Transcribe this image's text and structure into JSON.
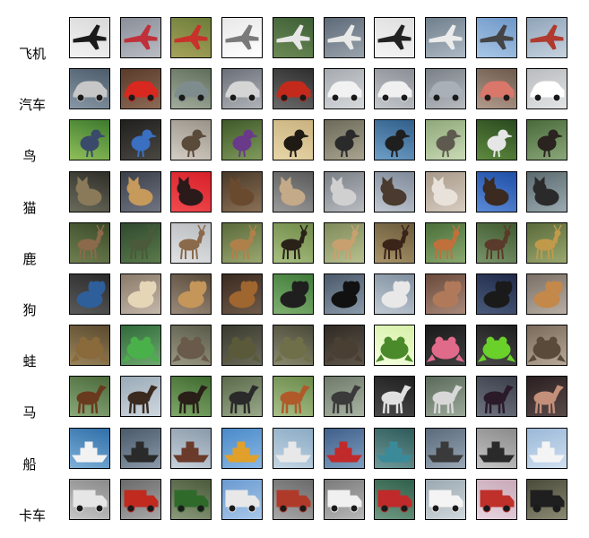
{
  "figure": {
    "rows": [
      {
        "label": "飞机",
        "subject": "airplane",
        "tiles": [
          {
            "bg": [
              "#d9d9d9",
              "#f2f2f2"
            ],
            "fg": "#1a1a1a",
            "icon": "airplane-icon"
          },
          {
            "bg": [
              "#8a8f99",
              "#b9bcc4"
            ],
            "fg": "#c0303a",
            "icon": "airplane-icon"
          },
          {
            "bg": [
              "#6b7d3a",
              "#a7a25a"
            ],
            "fg": "#c8322a",
            "icon": "airplane-icon"
          },
          {
            "bg": [
              "#e8e8e8",
              "#ffffff"
            ],
            "fg": "#7a7a7a",
            "icon": "airplane-icon"
          },
          {
            "bg": [
              "#3d5f36",
              "#6c8a55"
            ],
            "fg": "#e6e6e6",
            "icon": "airplane-icon"
          },
          {
            "bg": [
              "#5d6a78",
              "#9aa3ad"
            ],
            "fg": "#e9e9e9",
            "icon": "airplane-icon"
          },
          {
            "bg": [
              "#dedede",
              "#f5f5f5"
            ],
            "fg": "#222222",
            "icon": "airplane-icon"
          },
          {
            "bg": [
              "#6f7f8c",
              "#aebac4"
            ],
            "fg": "#ececec",
            "icon": "airplane-icon"
          },
          {
            "bg": [
              "#6e98c8",
              "#a9c6e6"
            ],
            "fg": "#444444",
            "icon": "airplane-icon"
          },
          {
            "bg": [
              "#8fa4b9",
              "#c7d3de"
            ],
            "fg": "#b03a2e",
            "icon": "airplane-icon"
          }
        ]
      },
      {
        "label": "汽车",
        "subject": "automobile",
        "tiles": [
          {
            "bg": [
              "#4d5c6b",
              "#8897a5"
            ],
            "fg": "#c7c7c7",
            "icon": "car-icon"
          },
          {
            "bg": [
              "#5a3a2a",
              "#8b6a55"
            ],
            "fg": "#d8281f",
            "icon": "car-icon"
          },
          {
            "bg": [
              "#5f6e5a",
              "#a3ad9c"
            ],
            "fg": "#7f8c8d",
            "icon": "car-icon"
          },
          {
            "bg": [
              "#6b6f78",
              "#b0b3b8"
            ],
            "fg": "#d5d5d5",
            "icon": "car-icon"
          },
          {
            "bg": [
              "#2f2f2f",
              "#6a6a6a"
            ],
            "fg": "#c42a1c",
            "icon": "car-icon"
          },
          {
            "bg": [
              "#a5aab0",
              "#d6d9dc"
            ],
            "fg": "#f2f2f2",
            "icon": "car-icon"
          },
          {
            "bg": [
              "#8b8f96",
              "#c5c8cc"
            ],
            "fg": "#f0f0f0",
            "icon": "car-icon"
          },
          {
            "bg": [
              "#7a8087",
              "#b8bcc1"
            ],
            "fg": "#a9b0b7",
            "icon": "car-icon"
          },
          {
            "bg": [
              "#6e5a4e",
              "#b19c8c"
            ],
            "fg": "#d9776a",
            "icon": "car-icon"
          },
          {
            "bg": [
              "#b9bcbf",
              "#e3e4e5"
            ],
            "fg": "#ffffff",
            "icon": "car-icon"
          }
        ]
      },
      {
        "label": "鸟",
        "subject": "bird",
        "tiles": [
          {
            "bg": [
              "#3d7a2e",
              "#8fbf5a"
            ],
            "fg": "#3a4a6a",
            "icon": "bird-icon"
          },
          {
            "bg": [
              "#20201e",
              "#4a4742"
            ],
            "fg": "#3b6fc2",
            "icon": "bird-icon"
          },
          {
            "bg": [
              "#9a938a",
              "#d3cdc4"
            ],
            "fg": "#5a4a3a",
            "icon": "bird-icon"
          },
          {
            "bg": [
              "#3f5a2a",
              "#7f9a5a"
            ],
            "fg": "#6a3a8a",
            "icon": "bird-icon"
          },
          {
            "bg": [
              "#c9b27f",
              "#e8d6a8"
            ],
            "fg": "#1f1a14",
            "icon": "bird-icon"
          },
          {
            "bg": [
              "#6e6a5a",
              "#a8a48f"
            ],
            "fg": "#2a2a2a",
            "icon": "bird-icon"
          },
          {
            "bg": [
              "#2f5f8a",
              "#6f9fc6"
            ],
            "fg": "#1f1f1f",
            "icon": "bird-icon"
          },
          {
            "bg": [
              "#8fa87a",
              "#c8dab5"
            ],
            "fg": "#5f5a50",
            "icon": "bird-icon"
          },
          {
            "bg": [
              "#2a4a1f",
              "#5f8a3f"
            ],
            "fg": "#e6e6e6",
            "icon": "bird-icon"
          },
          {
            "bg": [
              "#4a6a3a",
              "#8aa77a"
            ],
            "fg": "#2a2320",
            "icon": "bird-icon"
          }
        ]
      },
      {
        "label": "猫",
        "subject": "cat",
        "tiles": [
          {
            "bg": [
              "#2f2f2a",
              "#6a6a5a"
            ],
            "fg": "#8a7a5a",
            "icon": "cat-icon"
          },
          {
            "bg": [
              "#3a3f4a",
              "#6f7480"
            ],
            "fg": "#c59a5a",
            "icon": "cat-icon"
          },
          {
            "bg": [
              "#d8202a",
              "#f04a4f"
            ],
            "fg": "#2a1a1a",
            "icon": "cat-icon"
          },
          {
            "bg": [
              "#4a3a2a",
              "#8a6f55"
            ],
            "fg": "#6a4a2f",
            "icon": "cat-icon"
          },
          {
            "bg": [
              "#5a5a5a",
              "#9a9a9a"
            ],
            "fg": "#c4aa88",
            "icon": "cat-icon"
          },
          {
            "bg": [
              "#7a7f86",
              "#b8bcc1"
            ],
            "fg": "#d0d0d0",
            "icon": "cat-icon"
          },
          {
            "bg": [
              "#7f8a9a",
              "#c0c7d1"
            ],
            "fg": "#4a3a2f",
            "icon": "cat-icon"
          },
          {
            "bg": [
              "#a89a8a",
              "#d6ccc0"
            ],
            "fg": "#e8e2da",
            "icon": "cat-icon"
          },
          {
            "bg": [
              "#1f4fa8",
              "#5a8ad6"
            ],
            "fg": "#3a2a1f",
            "icon": "cat-icon"
          },
          {
            "bg": [
              "#5a6a6f",
              "#9aaab0"
            ],
            "fg": "#2a2a2a",
            "icon": "cat-icon"
          }
        ]
      },
      {
        "label": "鹿",
        "subject": "deer",
        "tiles": [
          {
            "bg": [
              "#3a4a2a",
              "#6f7f4f"
            ],
            "fg": "#8a6a4a",
            "icon": "deer-icon"
          },
          {
            "bg": [
              "#2f4a2f",
              "#5a7a4a"
            ],
            "fg": "#4a5a3a",
            "icon": "deer-icon"
          },
          {
            "bg": [
              "#b9bcbf",
              "#e0e2e4"
            ],
            "fg": "#8a6a4a",
            "icon": "deer-icon"
          },
          {
            "bg": [
              "#5a6a3a",
              "#9aa76f"
            ],
            "fg": "#b0804a",
            "icon": "deer-icon"
          },
          {
            "bg": [
              "#6f8a4a",
              "#a8bf7f"
            ],
            "fg": "#2a2218",
            "icon": "deer-icon"
          },
          {
            "bg": [
              "#7f8a5a",
              "#b8c08f"
            ],
            "fg": "#c8a070",
            "icon": "deer-icon"
          },
          {
            "bg": [
              "#6a5a3a",
              "#a8946a"
            ],
            "fg": "#3a2318",
            "icon": "deer-icon"
          },
          {
            "bg": [
              "#4a6f3a",
              "#8aa86f"
            ],
            "fg": "#c0703a",
            "icon": "deer-icon"
          },
          {
            "bg": [
              "#3f5a2f",
              "#7a946a"
            ],
            "fg": "#5a3a2a",
            "icon": "deer-icon"
          },
          {
            "bg": [
              "#5a6a3a",
              "#9aa86f"
            ],
            "fg": "#c09a4a",
            "icon": "deer-icon"
          }
        ]
      },
      {
        "label": "狗",
        "subject": "dog",
        "tiles": [
          {
            "bg": [
              "#2a2a2a",
              "#5a5a5a"
            ],
            "fg": "#2f5f9a",
            "icon": "dog-icon"
          },
          {
            "bg": [
              "#8a7a6a",
              "#c4b8aa"
            ],
            "fg": "#e6d6b8",
            "icon": "dog-icon"
          },
          {
            "bg": [
              "#5a4a3a",
              "#9a8a7a"
            ],
            "fg": "#c4965a",
            "icon": "dog-icon"
          },
          {
            "bg": [
              "#3a2a1f",
              "#6f5a4a"
            ],
            "fg": "#a0662f",
            "icon": "dog-icon"
          },
          {
            "bg": [
              "#3f7a3a",
              "#7fb06f"
            ],
            "fg": "#1f1f1f",
            "icon": "dog-icon"
          },
          {
            "bg": [
              "#4a5a6a",
              "#8a9aaa"
            ],
            "fg": "#111111",
            "icon": "dog-icon"
          },
          {
            "bg": [
              "#7f8f9f",
              "#c0cad4"
            ],
            "fg": "#e8e8e8",
            "icon": "dog-icon"
          },
          {
            "bg": [
              "#6a4a3a",
              "#a8887a"
            ],
            "fg": "#b07a5a",
            "icon": "dog-icon"
          },
          {
            "bg": [
              "#1f2a4a",
              "#4a5a7a"
            ],
            "fg": "#1a1a1a",
            "icon": "dog-icon"
          },
          {
            "bg": [
              "#7a7066",
              "#b8aea4"
            ],
            "fg": "#c4884a",
            "icon": "dog-icon"
          }
        ]
      },
      {
        "label": "蛙",
        "subject": "frog",
        "tiles": [
          {
            "bg": [
              "#5a4a2f",
              "#9a845a"
            ],
            "fg": "#8a6a3a",
            "icon": "frog-icon"
          },
          {
            "bg": [
              "#2f6a3a",
              "#6fa86f"
            ],
            "fg": "#4ab04a",
            "icon": "frog-icon"
          },
          {
            "bg": [
              "#5a5a4a",
              "#9a9a84"
            ],
            "fg": "#6a5a4a",
            "icon": "frog-icon"
          },
          {
            "bg": [
              "#3a3a2f",
              "#6a6a5a"
            ],
            "fg": "#5a5a3a",
            "icon": "frog-icon"
          },
          {
            "bg": [
              "#4a4a3a",
              "#8a8a6f"
            ],
            "fg": "#6f6f4a",
            "icon": "frog-icon"
          },
          {
            "bg": [
              "#2f2a24",
              "#5f564a"
            ],
            "fg": "#4a3f33",
            "icon": "frog-icon"
          },
          {
            "bg": [
              "#d6f0a8",
              "#f6ffe0"
            ],
            "fg": "#4a8a2a",
            "icon": "frog-icon"
          },
          {
            "bg": [
              "#1a1a1a",
              "#3f3f3f"
            ],
            "fg": "#e06a8a",
            "icon": "frog-icon"
          },
          {
            "bg": [
              "#1f1f1f",
              "#4a4a4a"
            ],
            "fg": "#6ad02a",
            "icon": "frog-icon"
          },
          {
            "bg": [
              "#7a6a5a",
              "#b8a898"
            ],
            "fg": "#5a4a3a",
            "icon": "frog-icon"
          }
        ]
      },
      {
        "label": "马",
        "subject": "horse",
        "tiles": [
          {
            "bg": [
              "#4a6a3a",
              "#8aa87a"
            ],
            "fg": "#6a3a1f",
            "icon": "horse-icon"
          },
          {
            "bg": [
              "#9aaab8",
              "#cfd8e0"
            ],
            "fg": "#3a2a1f",
            "icon": "horse-icon"
          },
          {
            "bg": [
              "#3f6a2f",
              "#7fa86a"
            ],
            "fg": "#2a1f18",
            "icon": "horse-icon"
          },
          {
            "bg": [
              "#5a6a4a",
              "#9aa88a"
            ],
            "fg": "#2a2a2a",
            "icon": "horse-icon"
          },
          {
            "bg": [
              "#6a8a4a",
              "#a8c08a"
            ],
            "fg": "#b05a2a",
            "icon": "horse-icon"
          },
          {
            "bg": [
              "#6f7a6a",
              "#aab4a4"
            ],
            "fg": "#3a3a3a",
            "icon": "horse-icon"
          },
          {
            "bg": [
              "#1f1f1f",
              "#4a4a4a"
            ],
            "fg": "#e0e0e0",
            "icon": "horse-icon"
          },
          {
            "bg": [
              "#5a6a5a",
              "#9aa89a"
            ],
            "fg": "#d8d8d8",
            "icon": "horse-icon"
          },
          {
            "bg": [
              "#3a3f4a",
              "#6f7480"
            ],
            "fg": "#2a1a2a",
            "icon": "horse-icon"
          },
          {
            "bg": [
              "#2a1f1f",
              "#5a4a4a"
            ],
            "fg": "#c4907a",
            "icon": "horse-icon"
          }
        ]
      },
      {
        "label": "船",
        "subject": "ship",
        "tiles": [
          {
            "bg": [
              "#2f6fa8",
              "#7fb0d8"
            ],
            "fg": "#f2f2f2",
            "icon": "ship-icon"
          },
          {
            "bg": [
              "#4a5a6a",
              "#8a9aaa"
            ],
            "fg": "#2a2a2a",
            "icon": "ship-icon"
          },
          {
            "bg": [
              "#8a9aaa",
              "#c8d2dc"
            ],
            "fg": "#6a3a2a",
            "icon": "ship-icon"
          },
          {
            "bg": [
              "#4a8ac8",
              "#8ab8e6"
            ],
            "fg": "#e0a02a",
            "icon": "ship-icon"
          },
          {
            "bg": [
              "#8aaac4",
              "#c4d6e4"
            ],
            "fg": "#e8e8e8",
            "icon": "ship-icon"
          },
          {
            "bg": [
              "#3f5f8a",
              "#7f9fc0"
            ],
            "fg": "#c02a2a",
            "icon": "ship-icon"
          },
          {
            "bg": [
              "#2f5a5a",
              "#6f9a9a"
            ],
            "fg": "#3a8a9a",
            "icon": "ship-icon"
          },
          {
            "bg": [
              "#5a6a7a",
              "#9aa8b6"
            ],
            "fg": "#3a3a3a",
            "icon": "ship-icon"
          },
          {
            "bg": [
              "#8a8a8a",
              "#c6c6c6"
            ],
            "fg": "#2a2a2a",
            "icon": "ship-icon"
          },
          {
            "bg": [
              "#9ab8d8",
              "#d0e0f0"
            ],
            "fg": "#f4f4f4",
            "icon": "ship-icon"
          }
        ]
      },
      {
        "label": "卡车",
        "subject": "truck",
        "tiles": [
          {
            "bg": [
              "#8a8a8a",
              "#c6c6c6"
            ],
            "fg": "#e6e6e6",
            "icon": "truck-icon"
          },
          {
            "bg": [
              "#6a6a6a",
              "#a8a8a8"
            ],
            "fg": "#c02a1f",
            "icon": "truck-icon"
          },
          {
            "bg": [
              "#4a5a3a",
              "#8a9a7a"
            ],
            "fg": "#2f6a2a",
            "icon": "truck-icon"
          },
          {
            "bg": [
              "#6a9ad0",
              "#a8c8ea"
            ],
            "fg": "#e8e8e8",
            "icon": "truck-icon"
          },
          {
            "bg": [
              "#6a6a6a",
              "#a8a8a8"
            ],
            "fg": "#b03a2a",
            "icon": "truck-icon"
          },
          {
            "bg": [
              "#7a7a7a",
              "#b8b8b8"
            ],
            "fg": "#f0f0f0",
            "icon": "truck-icon"
          },
          {
            "bg": [
              "#2f5f4a",
              "#6f9a84"
            ],
            "fg": "#c02a2a",
            "icon": "truck-icon"
          },
          {
            "bg": [
              "#9aa8b0",
              "#d0d8dc"
            ],
            "fg": "#f4f4f4",
            "icon": "truck-icon"
          },
          {
            "bg": [
              "#c8a8b8",
              "#e8d6e0"
            ],
            "fg": "#c0302a",
            "icon": "truck-icon"
          },
          {
            "bg": [
              "#4a4a3a",
              "#8a8a74"
            ],
            "fg": "#1f1f1f",
            "icon": "truck-icon"
          }
        ]
      }
    ]
  }
}
